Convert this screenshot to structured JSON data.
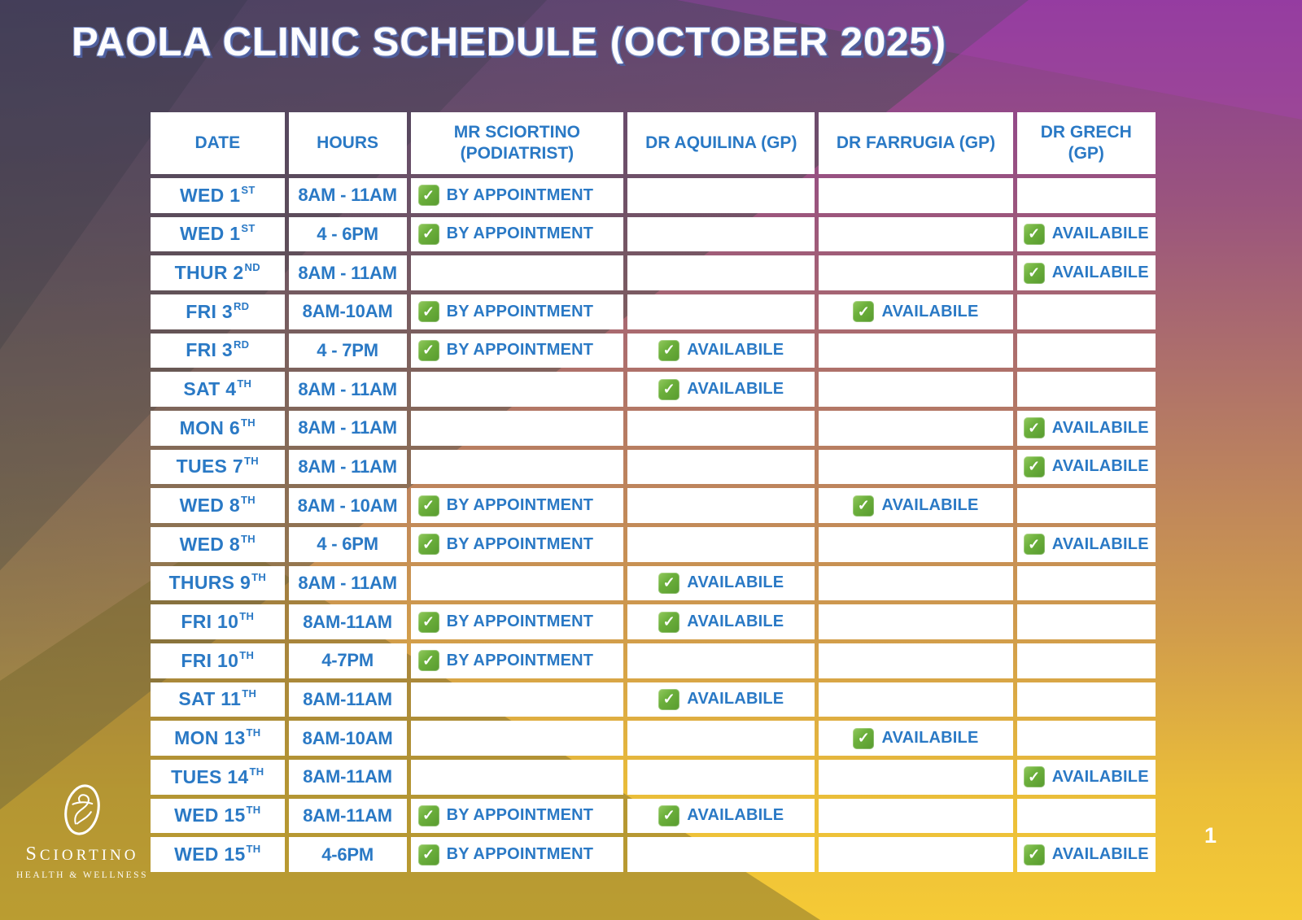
{
  "title": "PAOLA CLINIC SCHEDULE (OCTOBER 2025)",
  "page_number": "1",
  "logo": {
    "name": "Sciortino",
    "tagline": "Health & Wellness"
  },
  "icons": {
    "check_glyph": "✓"
  },
  "colors": {
    "text_blue": "#2a79c5",
    "check_green": "#6cb03c",
    "cell_white": "#ffffff",
    "title_white": "#fdfdfe",
    "title_shadow_blue": "#4e5f9e",
    "background_top_purple": "#8a3c95",
    "background_mid_mauve": "#b57a64",
    "background_bottom_gold": "#f5ca36"
  },
  "table": {
    "headers": [
      "DATE",
      "HOURS",
      "MR SCIORTINO (PODIATRIST)",
      "DR AQUILINA (GP)",
      "DR FARRUGIA (GP)",
      "DR GRECH (GP)"
    ],
    "status_labels": {
      "by_appointment": "BY APPOINTMENT",
      "available": "AVAILABILE"
    },
    "rows": [
      {
        "day": "WED",
        "num": "1",
        "ord": "ST",
        "hours": "8AM - 11AM",
        "sciortino": "by_appointment",
        "aquilina": "",
        "farrugia": "",
        "grech": ""
      },
      {
        "day": "WED",
        "num": "1",
        "ord": "ST",
        "hours": "4 - 6PM",
        "sciortino": "by_appointment",
        "aquilina": "",
        "farrugia": "",
        "grech": "available"
      },
      {
        "day": "THUR",
        "num": "2",
        "ord": "ND",
        "hours": "8AM - 11AM",
        "sciortino": "",
        "aquilina": "",
        "farrugia": "",
        "grech": "available"
      },
      {
        "day": "FRI",
        "num": "3",
        "ord": "RD",
        "hours": "8AM-10AM",
        "sciortino": "by_appointment",
        "aquilina": "",
        "farrugia": "available",
        "grech": ""
      },
      {
        "day": "FRI",
        "num": "3",
        "ord": "RD",
        "hours": "4 - 7PM",
        "sciortino": "by_appointment",
        "aquilina": "available",
        "farrugia": "",
        "grech": ""
      },
      {
        "day": "SAT",
        "num": "4",
        "ord": "TH",
        "hours": "8AM - 11AM",
        "sciortino": "",
        "aquilina": "available",
        "farrugia": "",
        "grech": ""
      },
      {
        "day": "MON",
        "num": "6",
        "ord": "TH",
        "hours": "8AM - 11AM",
        "sciortino": "",
        "aquilina": "",
        "farrugia": "",
        "grech": "available"
      },
      {
        "day": "TUES",
        "num": "7",
        "ord": "TH",
        "hours": "8AM - 11AM",
        "sciortino": "",
        "aquilina": "",
        "farrugia": "",
        "grech": "available"
      },
      {
        "day": "WED",
        "num": "8",
        "ord": "TH",
        "hours": "8AM - 10AM",
        "sciortino": "by_appointment",
        "aquilina": "",
        "farrugia": "available",
        "grech": ""
      },
      {
        "day": "WED",
        "num": "8",
        "ord": "TH",
        "hours": "4 - 6PM",
        "sciortino": "by_appointment",
        "aquilina": "",
        "farrugia": "",
        "grech": "available"
      },
      {
        "day": "THURS",
        "num": "9",
        "ord": "TH",
        "hours": "8AM - 11AM",
        "sciortino": "",
        "aquilina": "available",
        "farrugia": "",
        "grech": ""
      },
      {
        "day": "FRI",
        "num": "10",
        "ord": "TH",
        "hours": "8AM-11AM",
        "sciortino": "by_appointment",
        "aquilina": "available",
        "farrugia": "",
        "grech": ""
      },
      {
        "day": "FRI",
        "num": "10",
        "ord": "TH",
        "hours": "4-7PM",
        "sciortino": "by_appointment",
        "aquilina": "",
        "farrugia": "",
        "grech": ""
      },
      {
        "day": "SAT",
        "num": "11",
        "ord": "TH",
        "hours": "8AM-11AM",
        "sciortino": "",
        "aquilina": "available",
        "farrugia": "",
        "grech": ""
      },
      {
        "day": "MON",
        "num": "13",
        "ord": "TH",
        "hours": "8AM-10AM",
        "sciortino": "",
        "aquilina": "",
        "farrugia": "available",
        "grech": ""
      },
      {
        "day": "TUES",
        "num": "14",
        "ord": "TH",
        "hours": "8AM-11AM",
        "sciortino": "",
        "aquilina": "",
        "farrugia": "",
        "grech": "available"
      },
      {
        "day": "WED",
        "num": "15",
        "ord": "TH",
        "hours": "8AM-11AM",
        "sciortino": "by_appointment",
        "aquilina": "available",
        "farrugia": "",
        "grech": ""
      },
      {
        "day": "WED",
        "num": "15",
        "ord": "TH",
        "hours": "4-6PM",
        "sciortino": "by_appointment",
        "aquilina": "",
        "farrugia": "",
        "grech": "available"
      }
    ]
  }
}
